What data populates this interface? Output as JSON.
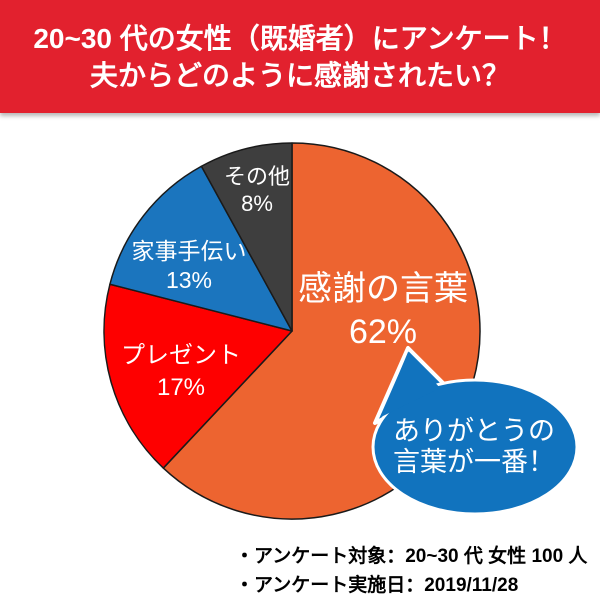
{
  "header": {
    "title_line1": "20~30 代の女性（既婚者）にアンケート！",
    "title_line2": "夫からどのように感謝されたい？",
    "bg_color": "#E2212E",
    "text_color": "#FFFFFF"
  },
  "chart_data": {
    "type": "pie",
    "title": "夫からどのように感謝されたい？（20~30代既婚女性アンケート）",
    "unit": "%",
    "start_angle_deg": 0,
    "direction": "clockwise",
    "total": 100,
    "slices": [
      {
        "label": "感謝の言葉",
        "value": 62,
        "pct_label": "62%",
        "color": "#ED6430"
      },
      {
        "label": "プレゼント",
        "value": 17,
        "pct_label": "17%",
        "color": "#FE0000"
      },
      {
        "label": "家事手伝い",
        "value": 13,
        "pct_label": "13%",
        "color": "#1B75BE"
      },
      {
        "label": "その他",
        "value": 8,
        "pct_label": "8%",
        "color": "#3E3E3E"
      }
    ],
    "outline_color": "#1A1A1A",
    "legend": "none",
    "labels_on_slices": true
  },
  "callout": {
    "line1": "ありがとうの",
    "line2": "言葉が一番！",
    "bg_color": "#1173BE",
    "outline_color": "#FFFFFF",
    "text_color": "#FFFFFF"
  },
  "footnotes": {
    "line1": "・アンケート対象：20~30 代 女性 100 人",
    "line2": "・アンケート実施日：2019/11/28"
  }
}
